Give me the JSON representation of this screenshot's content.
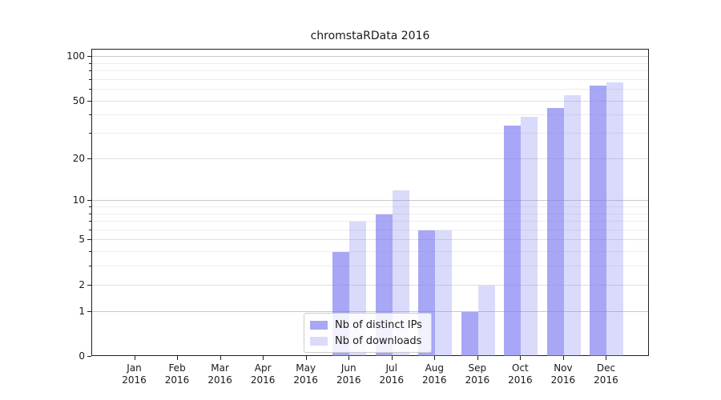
{
  "title": "chromstaRData 2016",
  "colors": {
    "bar_base_rgb": "121,121,241",
    "ips_alpha": 0.66,
    "downloads_alpha": 0.28,
    "grid_major": "#c8c8c8",
    "grid_mid": "#dfdfdf",
    "grid_minor": "#ececec",
    "spine": "#1f1f1f",
    "text": "#1a1a1a",
    "legend_border": "#cccccc"
  },
  "legend": {
    "items": [
      {
        "label": "Nb of distinct IPs",
        "series": "ips"
      },
      {
        "label": "Nb of downloads",
        "series": "downloads"
      }
    ]
  },
  "chart_data": {
    "type": "bar",
    "title": "chromstaRData 2016",
    "categories": [
      "Jan 2016",
      "Feb 2016",
      "Mar 2016",
      "Apr 2016",
      "May 2016",
      "Jun 2016",
      "Jul 2016",
      "Aug 2016",
      "Sep 2016",
      "Oct 2016",
      "Nov 2016",
      "Dec 2016"
    ],
    "x_tick_line1": [
      "Jan",
      "Feb",
      "Mar",
      "Apr",
      "May",
      "Jun",
      "Jul",
      "Aug",
      "Sep",
      "Oct",
      "Nov",
      "Dec"
    ],
    "x_tick_line2": "2016",
    "series": [
      {
        "name": "Nb of distinct IPs",
        "values": [
          0,
          0,
          0,
          0,
          0,
          4,
          8,
          6,
          1,
          34,
          45,
          64
        ]
      },
      {
        "name": "Nb of downloads",
        "values": [
          0,
          0,
          0,
          0,
          0,
          7,
          12,
          6,
          2,
          39,
          55,
          67
        ]
      }
    ],
    "xlabel": "",
    "ylabel": "",
    "y_scale": "log1p",
    "y_ticks": [
      0,
      1,
      2,
      5,
      10,
      20,
      50,
      100
    ],
    "y_tick_labels": [
      "0",
      "1",
      "2",
      "5",
      "10",
      "20",
      "50",
      "100"
    ],
    "y_minor_ticks": [
      3,
      4,
      6,
      7,
      8,
      9,
      30,
      40,
      60,
      70,
      80,
      90
    ],
    "ylim": [
      0,
      112
    ],
    "grid": true,
    "legend_position": "lower center"
  }
}
